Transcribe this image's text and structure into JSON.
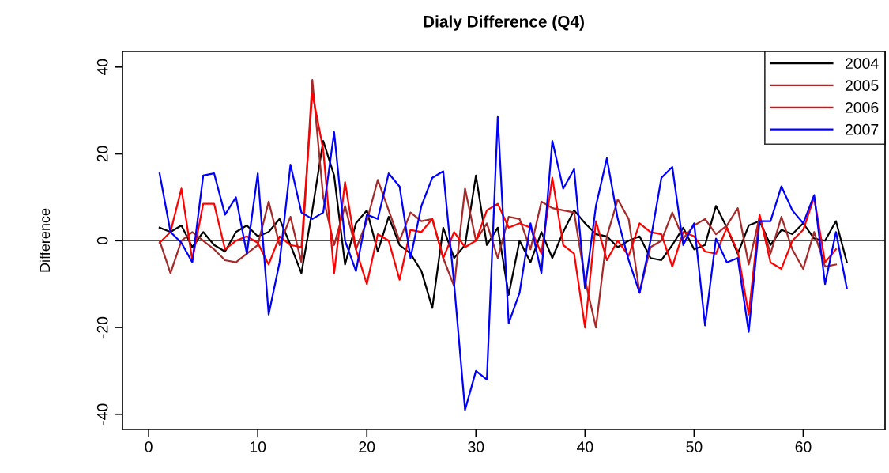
{
  "chart_data": {
    "type": "line",
    "title": "Dialy Difference (Q4)",
    "ylabel": "Difference",
    "series": [
      {
        "name": "2004",
        "color": "#000000",
        "x": [
          1,
          2,
          3,
          4,
          5,
          6,
          7,
          8,
          9,
          10,
          11,
          12,
          13,
          14,
          15,
          16,
          17,
          18,
          19,
          20,
          21,
          22,
          23,
          24,
          25,
          26,
          27,
          28,
          29,
          30,
          31,
          32,
          33,
          34,
          35,
          36,
          37,
          38,
          39,
          40,
          41,
          42,
          43,
          44,
          45,
          46,
          47,
          48,
          49,
          50,
          51,
          52,
          53,
          54,
          55,
          56,
          57,
          58,
          59,
          60,
          61,
          62,
          63,
          64
        ],
        "values": [
          3,
          2,
          3.5,
          -1.5,
          2,
          -1,
          -2.5,
          2,
          3.5,
          1,
          2,
          5,
          -1,
          -7.5,
          7,
          23,
          15,
          -5.5,
          4,
          7,
          -2.5,
          5.5,
          -1,
          -3,
          -7,
          -15.5,
          3,
          -4,
          -1,
          15,
          -1,
          3,
          -12.5,
          0,
          -5,
          2,
          -4,
          2,
          7,
          4,
          1.5,
          1,
          -1.5,
          0,
          1,
          -4,
          -4.5,
          -1,
          3,
          -2,
          -1,
          8,
          3,
          -3,
          3.5,
          4.5,
          -1,
          2.5,
          1.5,
          4,
          0.5,
          0,
          4.5,
          -5
        ]
      },
      {
        "name": "2005",
        "color": "#a52a2a",
        "x": [
          1,
          2,
          3,
          4,
          5,
          6,
          7,
          8,
          9,
          10,
          11,
          12,
          13,
          14,
          15,
          16,
          17,
          18,
          19,
          20,
          21,
          22,
          23,
          24,
          25,
          26,
          27,
          28,
          29,
          30,
          31,
          32,
          33,
          34,
          35,
          36,
          37,
          38,
          39,
          40,
          41,
          42,
          43,
          44,
          45,
          46,
          47,
          48,
          49,
          50,
          51,
          52,
          53,
          54,
          55,
          56,
          57,
          58,
          59,
          60,
          61,
          62,
          63
        ],
        "values": [
          0,
          -7.5,
          0,
          2,
          0,
          -2,
          -4.5,
          -5,
          -3,
          -1,
          9,
          -1,
          5.5,
          -5,
          37,
          10,
          -1,
          8,
          -2,
          4.5,
          14,
          7,
          0,
          6.5,
          4.5,
          5,
          -4,
          -10.5,
          12,
          0,
          4,
          -4,
          5.5,
          5,
          -2,
          9,
          7.5,
          7,
          6.5,
          -9,
          -20,
          1,
          9.5,
          5,
          -12,
          -1.5,
          0,
          6.5,
          0.5,
          3.5,
          5,
          1.5,
          3.5,
          7.5,
          -5.5,
          5.5,
          -3,
          5.5,
          -2,
          -6.5,
          2,
          -6,
          -5.5
        ]
      },
      {
        "name": "2006",
        "color": "#ff0000",
        "x": [
          1,
          2,
          3,
          4,
          5,
          6,
          7,
          8,
          9,
          10,
          11,
          12,
          13,
          14,
          15,
          16,
          17,
          18,
          19,
          20,
          21,
          22,
          23,
          24,
          25,
          26,
          27,
          28,
          29,
          30,
          31,
          32,
          33,
          34,
          35,
          36,
          37,
          38,
          39,
          40,
          41,
          42,
          43,
          44,
          45,
          46,
          47,
          48,
          49,
          50,
          51,
          52,
          53,
          54,
          55,
          56,
          57,
          58,
          59,
          60,
          61,
          62,
          63
        ],
        "values": [
          -0.5,
          2,
          12,
          -4.5,
          8.5,
          8.5,
          -2,
          0,
          1,
          -0.5,
          -5.5,
          1,
          -1,
          -1.5,
          34,
          21,
          -7.5,
          13.5,
          -2,
          -10,
          1.5,
          0,
          -9,
          2.5,
          2,
          5,
          -4,
          2,
          -1.5,
          0,
          7,
          8.5,
          3,
          4,
          3,
          -3,
          14.5,
          -1,
          -3,
          -20,
          4.5,
          -4.5,
          0,
          -3.5,
          4,
          2,
          1.5,
          -6,
          2,
          1,
          -2.5,
          -3,
          3,
          -2.5,
          -17,
          6,
          -5,
          -6.5,
          0,
          2.5,
          10,
          -5,
          -2
        ]
      },
      {
        "name": "2007",
        "color": "#0000ff",
        "x": [
          1,
          2,
          3,
          4,
          5,
          6,
          7,
          8,
          9,
          10,
          11,
          12,
          13,
          14,
          15,
          16,
          17,
          18,
          19,
          20,
          21,
          22,
          23,
          24,
          25,
          26,
          27,
          28,
          29,
          30,
          31,
          32,
          33,
          34,
          35,
          36,
          37,
          38,
          39,
          40,
          41,
          42,
          43,
          44,
          45,
          46,
          47,
          48,
          49,
          50,
          51,
          52,
          53,
          54,
          55,
          56,
          57,
          58,
          59,
          60,
          61,
          62,
          63,
          64
        ],
        "values": [
          15.5,
          2,
          -0.5,
          -5,
          15,
          15.5,
          6,
          10,
          -3,
          15.5,
          -17,
          -5,
          17.5,
          6.5,
          5,
          6.5,
          25,
          0,
          -7,
          6,
          5,
          15.5,
          12.5,
          -4,
          8,
          14.5,
          16,
          -10,
          -39,
          -30,
          -32,
          28.5,
          -19,
          -12,
          4,
          -7.5,
          23,
          12,
          16.5,
          -11,
          8,
          19,
          5,
          -4.5,
          -12,
          0,
          14.5,
          17,
          -1,
          4,
          -19.5,
          0.5,
          -5,
          -4,
          -21,
          4.5,
          4.5,
          12.5,
          7,
          4,
          10.5,
          -10,
          2,
          -11
        ]
      }
    ],
    "xlim": [
      -2.4,
      67.5
    ],
    "xticks": [
      0,
      10,
      20,
      30,
      40,
      50,
      60
    ],
    "ylim": [
      -43.5,
      43.6
    ],
    "yticks": [
      -40,
      -20,
      0,
      20,
      40
    ],
    "ref_lines": [
      {
        "axis": "y",
        "value": 0,
        "color": "#555555"
      }
    ],
    "grid": false,
    "legend": "top right"
  }
}
